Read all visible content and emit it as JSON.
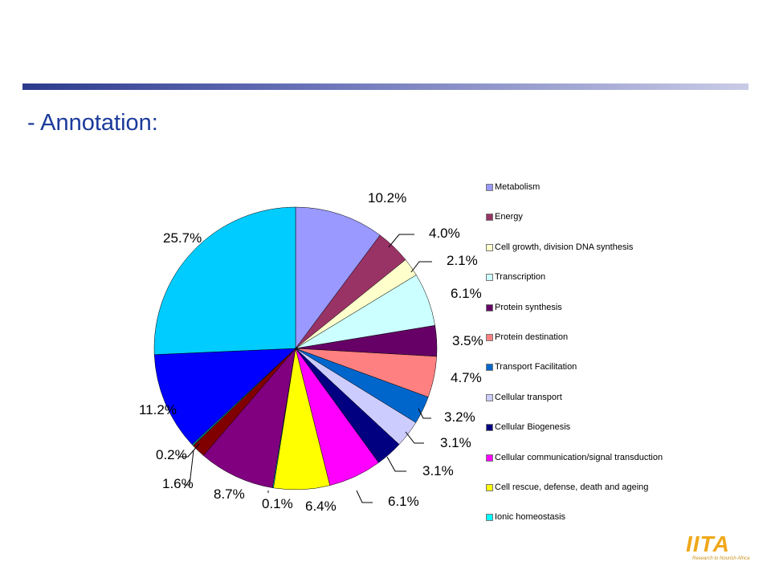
{
  "slide": {
    "title": "- Annotation:",
    "logo_text": "IITA",
    "logo_tagline": "Research to Nourish Africa"
  },
  "colors": {
    "bar": "#2c3a8c",
    "title": "#1b3a9a",
    "logo": "#f0a81a"
  },
  "chart_data": {
    "type": "pie",
    "title": "",
    "legend_position": "right",
    "slices": [
      {
        "label": "Metabolism",
        "value": 10.2,
        "display": "10.2%",
        "color": "#9999ff"
      },
      {
        "label": "Energy",
        "value": 4.0,
        "display": "4.0%",
        "color": "#993366"
      },
      {
        "label": "Cell growth, division DNA synthesis",
        "value": 2.1,
        "display": "2.1%",
        "color": "#ffffcc"
      },
      {
        "label": "Transcription",
        "value": 6.1,
        "display": "6.1%",
        "color": "#ccffff"
      },
      {
        "label": "Protein synthesis",
        "value": 3.5,
        "display": "3.5%",
        "color": "#660066"
      },
      {
        "label": "Protein destination",
        "value": 4.7,
        "display": "4.7%",
        "color": "#ff8080"
      },
      {
        "label": "Transport Facilitation",
        "value": 3.2,
        "display": "3.2%",
        "color": "#0066cc"
      },
      {
        "label": "Cellular transport",
        "value": 3.1,
        "display": "3.1%",
        "color": "#ccccff"
      },
      {
        "label": "Cellular Biogenesis",
        "value": 3.1,
        "display": "3.1%",
        "color": "#000080"
      },
      {
        "label": "Cellular communication/signal transduction",
        "value": 6.1,
        "display": "6.1%",
        "color": "#ff00ff"
      },
      {
        "label": "Cell rescue, defense, death and ageing",
        "value": 6.4,
        "display": "6.4%",
        "color": "#ffff00"
      },
      {
        "label": "Ionic homeostasis",
        "value": 0.1,
        "display": "0.1%",
        "color": "#00ffff"
      },
      {
        "label": "",
        "value": 8.7,
        "display": "8.7%",
        "color": "#800080"
      },
      {
        "label": "",
        "value": 1.6,
        "display": "1.6%",
        "color": "#800000"
      },
      {
        "label": "",
        "value": 0.2,
        "display": "0.2%",
        "color": "#008080"
      },
      {
        "label": "",
        "value": 11.2,
        "display": "11.2%",
        "color": "#0000ff"
      },
      {
        "label": "",
        "value": 25.7,
        "display": "25.7%",
        "color": "#00ccff"
      }
    ]
  }
}
